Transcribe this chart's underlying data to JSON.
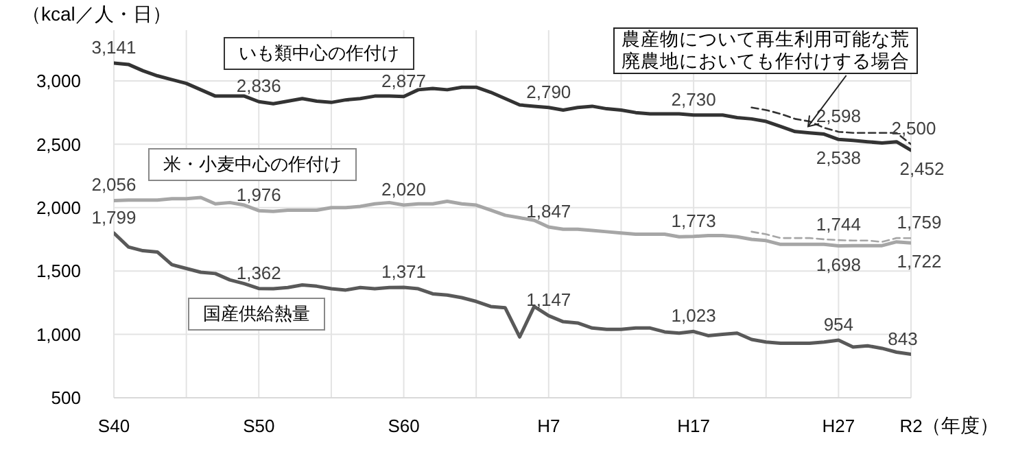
{
  "chart_data": {
    "type": "line",
    "ylabel": "（kcal／人・日）",
    "xlabel": "（年度）",
    "categories": [
      "S40",
      null,
      null,
      null,
      null,
      null,
      null,
      null,
      null,
      null,
      "S50",
      null,
      null,
      null,
      null,
      null,
      null,
      null,
      null,
      null,
      "S60",
      null,
      null,
      null,
      null,
      null,
      null,
      null,
      null,
      null,
      "H7",
      null,
      null,
      null,
      null,
      null,
      null,
      null,
      null,
      null,
      "H17",
      null,
      null,
      null,
      null,
      null,
      null,
      null,
      null,
      null,
      "H27",
      null,
      null,
      null,
      null,
      "R2"
    ],
    "ylim": [
      500,
      3400
    ],
    "yticks": [
      {
        "value": 500,
        "label": "500"
      },
      {
        "value": 1000,
        "label": "1,000"
      },
      {
        "value": 1500,
        "label": "1,500"
      },
      {
        "value": 2000,
        "label": "2,000"
      },
      {
        "value": 2500,
        "label": "2,500"
      },
      {
        "value": 3000,
        "label": "3,000"
      }
    ],
    "grid": true,
    "legend": false,
    "marker": "none",
    "annotations": [
      {
        "text": "農産物について再生利用可能な荒廃農地においても作付けする場合",
        "x": "H27",
        "y": 2640
      }
    ],
    "series": [
      {
        "name": "いも類中心の作付け",
        "color": "#333333",
        "line_style": "solid",
        "values": [
          3141,
          3130,
          3080,
          3040,
          3010,
          2980,
          2930,
          2880,
          2880,
          2880,
          2836,
          2820,
          2840,
          2860,
          2840,
          2830,
          2850,
          2860,
          2880,
          2880,
          2877,
          2930,
          2940,
          2930,
          2950,
          2950,
          2910,
          2860,
          2810,
          2800,
          2790,
          2770,
          2790,
          2800,
          2780,
          2770,
          2750,
          2740,
          2740,
          2740,
          2730,
          2730,
          2730,
          2710,
          2700,
          2680,
          2640,
          2600,
          2590,
          2580,
          2538,
          2530,
          2520,
          2510,
          2520,
          2452
        ],
        "value_labels": [
          "3,141",
          null,
          null,
          null,
          null,
          null,
          null,
          null,
          null,
          null,
          "2,836",
          null,
          null,
          null,
          null,
          null,
          null,
          null,
          null,
          null,
          "2,877",
          null,
          null,
          null,
          null,
          null,
          null,
          null,
          null,
          null,
          "2,790",
          null,
          null,
          null,
          null,
          null,
          null,
          null,
          null,
          null,
          "2,730",
          null,
          null,
          null,
          null,
          null,
          null,
          null,
          null,
          null,
          "2,538",
          null,
          null,
          null,
          null,
          "2,452"
        ]
      },
      {
        "color": "#333333",
        "line_style": "dashed",
        "values": [
          null,
          null,
          null,
          null,
          null,
          null,
          null,
          null,
          null,
          null,
          null,
          null,
          null,
          null,
          null,
          null,
          null,
          null,
          null,
          null,
          null,
          null,
          null,
          null,
          null,
          null,
          null,
          null,
          null,
          null,
          null,
          null,
          null,
          null,
          null,
          null,
          null,
          null,
          null,
          null,
          null,
          null,
          null,
          null,
          2790,
          2770,
          2740,
          2700,
          2680,
          2630,
          2598,
          2590,
          2590,
          2590,
          2590,
          2500
        ],
        "value_labels": [
          null,
          null,
          null,
          null,
          null,
          null,
          null,
          null,
          null,
          null,
          null,
          null,
          null,
          null,
          null,
          null,
          null,
          null,
          null,
          null,
          null,
          null,
          null,
          null,
          null,
          null,
          null,
          null,
          null,
          null,
          null,
          null,
          null,
          null,
          null,
          null,
          null,
          null,
          null,
          null,
          null,
          null,
          null,
          null,
          null,
          null,
          null,
          null,
          null,
          null,
          "2,598",
          null,
          null,
          null,
          null,
          "2,500"
        ]
      },
      {
        "name": "米・小麦中心の作付け",
        "color": "#a6a6a6",
        "line_style": "solid",
        "values": [
          2056,
          2060,
          2060,
          2060,
          2070,
          2070,
          2080,
          2030,
          2040,
          2020,
          1976,
          1970,
          1980,
          1980,
          1980,
          2000,
          2000,
          2010,
          2030,
          2040,
          2020,
          2030,
          2030,
          2050,
          2030,
          2020,
          1980,
          1940,
          1920,
          1900,
          1847,
          1830,
          1830,
          1820,
          1810,
          1800,
          1790,
          1790,
          1790,
          1770,
          1773,
          1780,
          1780,
          1770,
          1750,
          1740,
          1710,
          1710,
          1710,
          1710,
          1698,
          1700,
          1700,
          1700,
          1730,
          1722
        ],
        "value_labels": [
          "2,056",
          null,
          null,
          null,
          null,
          null,
          null,
          null,
          null,
          null,
          "1,976",
          null,
          null,
          null,
          null,
          null,
          null,
          null,
          null,
          null,
          "2,020",
          null,
          null,
          null,
          null,
          null,
          null,
          null,
          null,
          null,
          "1,847",
          null,
          null,
          null,
          null,
          null,
          null,
          null,
          null,
          null,
          "1,773",
          null,
          null,
          null,
          null,
          null,
          null,
          null,
          null,
          null,
          "1,698",
          null,
          null,
          null,
          null,
          "1,722"
        ]
      },
      {
        "color": "#a6a6a6",
        "line_style": "dashed",
        "values": [
          null,
          null,
          null,
          null,
          null,
          null,
          null,
          null,
          null,
          null,
          null,
          null,
          null,
          null,
          null,
          null,
          null,
          null,
          null,
          null,
          null,
          null,
          null,
          null,
          null,
          null,
          null,
          null,
          null,
          null,
          null,
          null,
          null,
          null,
          null,
          null,
          null,
          null,
          null,
          null,
          null,
          null,
          null,
          null,
          1810,
          1790,
          1760,
          1760,
          1760,
          1750,
          1744,
          1740,
          1740,
          1730,
          1760,
          1759
        ],
        "value_labels": [
          null,
          null,
          null,
          null,
          null,
          null,
          null,
          null,
          null,
          null,
          null,
          null,
          null,
          null,
          null,
          null,
          null,
          null,
          null,
          null,
          null,
          null,
          null,
          null,
          null,
          null,
          null,
          null,
          null,
          null,
          null,
          null,
          null,
          null,
          null,
          null,
          null,
          null,
          null,
          null,
          null,
          null,
          null,
          null,
          null,
          null,
          null,
          null,
          null,
          null,
          "1,744",
          null,
          null,
          null,
          null,
          "1,759"
        ]
      },
      {
        "name": "国産供給熱量",
        "color": "#595959",
        "line_style": "solid",
        "values": [
          1799,
          1690,
          1660,
          1650,
          1550,
          1520,
          1490,
          1480,
          1430,
          1400,
          1362,
          1360,
          1370,
          1390,
          1380,
          1360,
          1350,
          1370,
          1360,
          1370,
          1371,
          1360,
          1320,
          1310,
          1290,
          1260,
          1220,
          1210,
          980,
          1220,
          1147,
          1100,
          1090,
          1050,
          1040,
          1040,
          1050,
          1050,
          1020,
          1010,
          1023,
          990,
          1000,
          1010,
          960,
          940,
          930,
          930,
          930,
          940,
          954,
          900,
          910,
          890,
          860,
          843
        ],
        "value_labels": [
          "1,799",
          null,
          null,
          null,
          null,
          null,
          null,
          null,
          null,
          null,
          "1,362",
          null,
          null,
          null,
          null,
          null,
          null,
          null,
          null,
          null,
          "1,371",
          null,
          null,
          null,
          null,
          null,
          null,
          null,
          null,
          null,
          "1,147",
          null,
          null,
          null,
          null,
          null,
          null,
          null,
          null,
          null,
          "1,023",
          null,
          null,
          null,
          null,
          null,
          null,
          null,
          null,
          null,
          "954",
          null,
          null,
          null,
          null,
          "843"
        ]
      }
    ]
  }
}
